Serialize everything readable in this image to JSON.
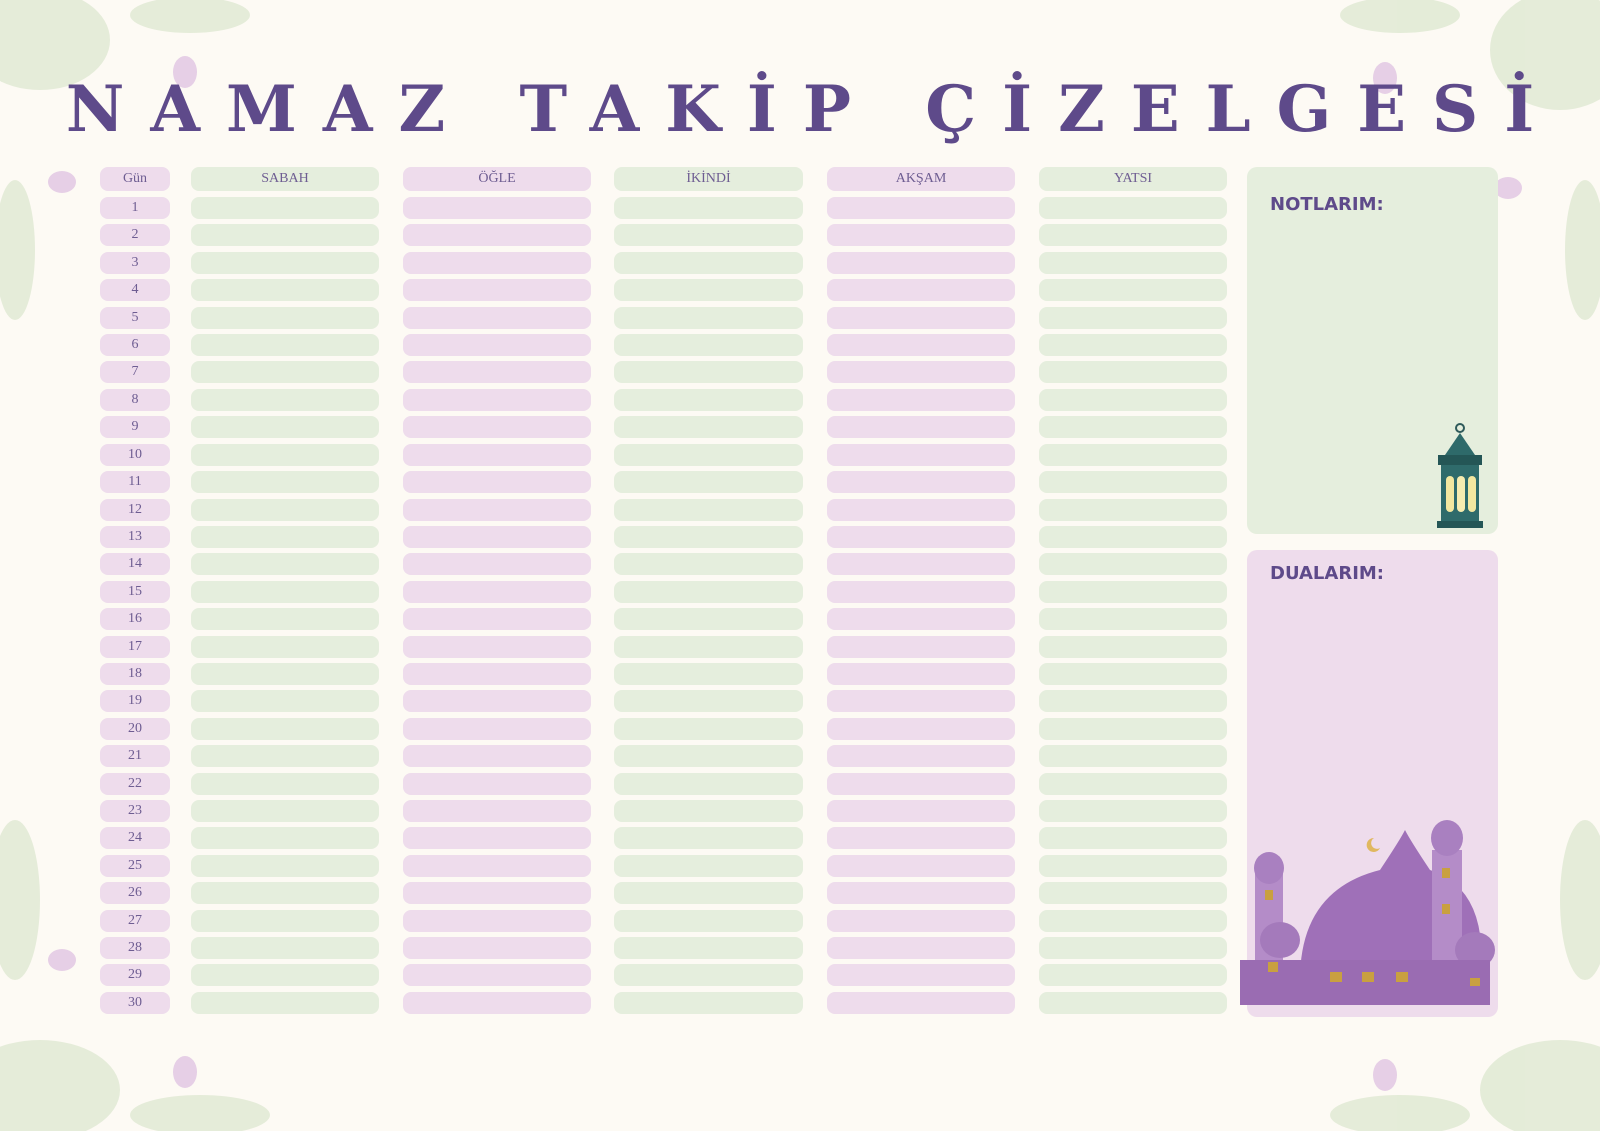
{
  "header": {
    "title": "NAMAZ TAKİP ÇİZELGESİ"
  },
  "table": {
    "columns": [
      "Gün",
      "SABAH",
      "ÖĞLE",
      "İKİNDİ",
      "AKŞAM",
      "YATSI"
    ],
    "days": [
      "1",
      "2",
      "3",
      "4",
      "5",
      "6",
      "7",
      "8",
      "9",
      "10",
      "11",
      "12",
      "13",
      "14",
      "15",
      "16",
      "17",
      "18",
      "19",
      "20",
      "21",
      "22",
      "23",
      "24",
      "25",
      "26",
      "27",
      "28",
      "29",
      "30"
    ]
  },
  "panels": {
    "notes": "NOTLARIM:",
    "prayers": "DUALARIM:"
  }
}
